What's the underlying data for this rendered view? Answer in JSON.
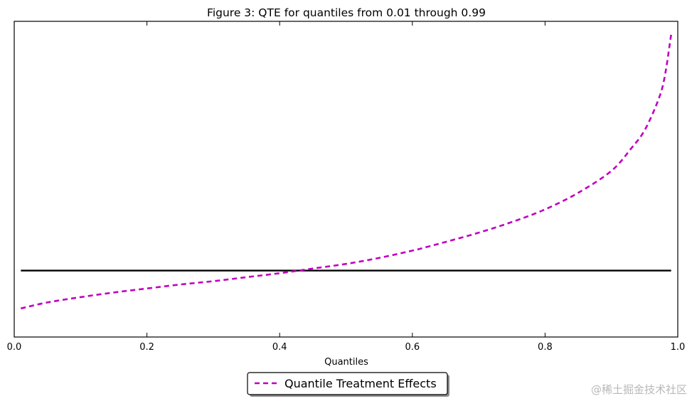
{
  "chart_data": {
    "type": "line",
    "title": "Figure 3: QTE for quantiles from 0.01 through 0.99",
    "xlabel": "Quantiles",
    "ylabel": "",
    "xlim": [
      0.0,
      1.0
    ],
    "ylim": [
      -1.0,
      3.75
    ],
    "x_ticks": [
      0.0,
      0.2,
      0.4,
      0.6,
      0.8,
      1.0
    ],
    "x_tick_labels": [
      "0.0",
      "0.2",
      "0.4",
      "0.6",
      "0.8",
      "1.0"
    ],
    "y_ticks": [],
    "grid": false,
    "legend": {
      "placement": "bottom-center",
      "entries": [
        "Quantile Treatment Effects"
      ]
    },
    "series": [
      {
        "name": "Quantile Treatment Effects",
        "style": "dashed",
        "color": "#bf00bf",
        "x": [
          0.01,
          0.05,
          0.1,
          0.15,
          0.2,
          0.25,
          0.3,
          0.35,
          0.4,
          0.45,
          0.5,
          0.55,
          0.6,
          0.62,
          0.65,
          0.7,
          0.75,
          0.8,
          0.85,
          0.9,
          0.93,
          0.95,
          0.97,
          0.98,
          0.99
        ],
        "y": [
          -0.57,
          -0.48,
          -0.4,
          -0.33,
          -0.27,
          -0.21,
          -0.16,
          -0.1,
          -0.04,
          0.03,
          0.1,
          0.19,
          0.3,
          0.35,
          0.43,
          0.57,
          0.73,
          0.92,
          1.17,
          1.5,
          1.84,
          2.11,
          2.55,
          2.9,
          3.55
        ]
      },
      {
        "name": "zero line",
        "style": "solid",
        "color": "#000000",
        "x": [
          0.01,
          0.99
        ],
        "y": [
          0.0,
          0.0
        ]
      }
    ]
  },
  "watermark": "@稀土掘金技术社区"
}
